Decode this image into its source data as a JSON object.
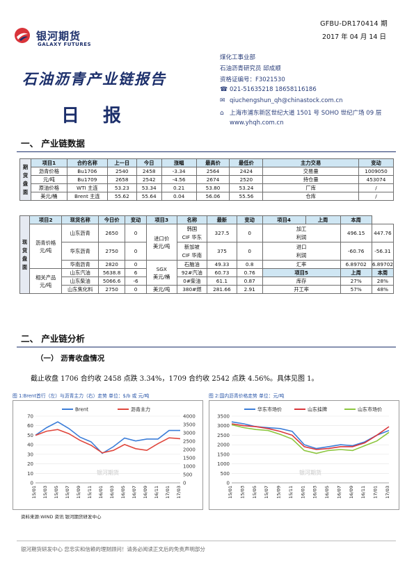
{
  "header": {
    "logo_cn": "银河期货",
    "logo_en": "GALAXY FUTURES",
    "doc_id": "GFBU-DR170414 期",
    "date": "2017 年 04 月 14 日",
    "title": "石油沥青产业链报告",
    "subtitle": "日报"
  },
  "contact": {
    "dept": "煤化工事业部",
    "researcher": "石油沥青研究员  邱成顺",
    "license": "资格证编号：F3021530",
    "phone": "021-51635218    18658116186",
    "email": "qiuchengshun_qh@chinastock.com.cn",
    "address": "上海市浦东新区世纪大道 1501 号 SOHO 世纪广场 09 层",
    "website": "www.yhqh.com.cn",
    "phone_icon": "telephone-icon",
    "email_icon": "envelope-icon",
    "address_icon": "building-icon"
  },
  "section1": {
    "title": "一、  产业链数据"
  },
  "futures_table": {
    "side_label": "期货盘面",
    "headers": [
      "项目1",
      "合约名称",
      "上一日",
      "今日",
      "涨幅",
      "最高价",
      "最低价",
      "主力交易",
      "变动"
    ],
    "rows": [
      [
        "沥青价格",
        "Bu1706",
        "2540",
        "2458",
        "-3.34",
        "2564",
        "2424",
        "交易量",
        "1009050",
        "427568"
      ],
      [
        "元/吨",
        "Bu1709",
        "2658",
        "2542",
        "-4.56",
        "2674",
        "2520",
        "持仓量",
        "453074",
        "43122"
      ],
      [
        "原油价格",
        "WTI 主连",
        "53.23",
        "53.34",
        "0.21",
        "53.80",
        "53.24",
        "厂库",
        "/",
        "/"
      ],
      [
        "美元/桶",
        "Brent 主连",
        "55.62",
        "55.64",
        "0.04",
        "56.06",
        "55.56",
        "仓库",
        "/",
        "/"
      ]
    ]
  },
  "spot_table": {
    "side_label": "现货盘面",
    "headers": [
      "项目2",
      "现货名称",
      "今日价",
      "变动",
      "项目3",
      "名称",
      "最新",
      "变动",
      "项目4",
      "上周",
      "本周"
    ],
    "group1_label": "沥青价格元/吨",
    "group2_label": "相关产品元/吨",
    "import_label": "进口价美元/吨",
    "sgx_label": "SGX美元/桶",
    "usd_label": "美元/吨",
    "rows": [
      {
        "name": "山东沥青",
        "price": "2650",
        "chg": "0",
        "n3": "韩国CIF 华东",
        "latest": "327.5",
        "chg3": "0",
        "n4": "加工利润",
        "last": "496.15",
        "this": "447.76"
      },
      {
        "name": "华东沥青",
        "price": "2750",
        "chg": "0",
        "n3": "新加坡CIF 华南",
        "latest": "375",
        "chg3": "0",
        "n4": "进口利润",
        "last": "-60.76",
        "this": "-56.31"
      },
      {
        "name": "华南沥青",
        "price": "2820",
        "chg": "0",
        "n3": "石脑油",
        "latest": "49.33",
        "chg3": "0.8",
        "n4": "汇率",
        "last": "6.89702",
        "this": "6.89702"
      },
      {
        "name": "山东汽油",
        "price": "5638.8",
        "chg": "6",
        "n3": "92#汽油",
        "latest": "60.73",
        "chg3": "0.76",
        "n4": "项目5",
        "last": "上周",
        "this": "本周"
      },
      {
        "name": "山东柴油",
        "price": "5066.6",
        "chg": "-6",
        "n3": "0#柴油",
        "latest": "61.1",
        "chg3": "0.87",
        "n4": "库存",
        "last": "27%",
        "this": "28%"
      },
      {
        "name": "山东焦化料",
        "price": "2750",
        "chg": "0",
        "n3": "380#燃",
        "latest": "281.66",
        "chg3": "2.91",
        "n4": "开工率",
        "last": "57%",
        "this": "48%"
      }
    ]
  },
  "section2": {
    "title": "二、  产业链分析",
    "sub1": "（一）  沥青收盘情况"
  },
  "paragraph": "截止收盘 1706 合约收 2458 点跌 3.34%，1709 合约收 2542 点跌 4.56%。具体见图 1。",
  "chart1_caption": "图 1:Brent首行（左）与沥青主力（右）走势   单位：$/b 或 元/吨",
  "chart2_caption": "图 2:国内沥青价格走势   单位：元/吨",
  "watermark": "银河期货",
  "chart_data": [
    {
      "type": "line",
      "x": [
        "15/01",
        "15/03",
        "15/05",
        "15/07",
        "15/09",
        "15/11",
        "16/01",
        "16/03",
        "16/05",
        "16/07",
        "16/09",
        "16/11",
        "17/01",
        "17/03"
      ],
      "series": [
        {
          "name": "Brent",
          "axis": "left",
          "color": "#3b7dd8",
          "values": [
            50,
            58,
            64,
            57,
            48,
            43,
            31,
            38,
            47,
            44,
            46,
            46,
            55,
            55
          ]
        },
        {
          "name": "沥青主力",
          "axis": "right",
          "color": "#e0463c",
          "values": [
            2850,
            3100,
            3200,
            2950,
            2550,
            2250,
            1800,
            1950,
            2300,
            2050,
            1950,
            2350,
            2700,
            2650
          ]
        }
      ],
      "yleft_ticks": [
        "0",
        "10",
        "20",
        "30",
        "40",
        "50",
        "60",
        "70"
      ],
      "yright_ticks": [
        "0",
        "500",
        "1000",
        "1500",
        "2000",
        "2500",
        "3000",
        "3500",
        "4000"
      ],
      "ylim_left": [
        0,
        70
      ],
      "ylim_right": [
        0,
        4000
      ],
      "legend": "top"
    },
    {
      "type": "line",
      "x": [
        "15/01",
        "15/03",
        "15/05",
        "15/07",
        "15/09",
        "15/11",
        "16/01",
        "16/03",
        "16/05",
        "16/07",
        "16/09",
        "16/11",
        "17/01",
        "17/03"
      ],
      "series": [
        {
          "name": "华东市场价",
          "color": "#3b7dd8",
          "values": [
            3200,
            3100,
            2950,
            2900,
            2850,
            2700,
            2000,
            1800,
            1900,
            2000,
            1950,
            2150,
            2500,
            2750
          ]
        },
        {
          "name": "山东挂牌",
          "color": "#d9343a",
          "values": [
            3100,
            3000,
            2950,
            2850,
            2700,
            2500,
            1900,
            1750,
            1800,
            1900,
            1900,
            2100,
            2500,
            2950
          ]
        },
        {
          "name": "山东市场价",
          "color": "#8cc63e",
          "values": [
            3050,
            2900,
            2800,
            2750,
            2550,
            2300,
            1700,
            1550,
            1700,
            1750,
            1700,
            1950,
            2200,
            2650
          ]
        }
      ],
      "y_ticks": [
        "0",
        "500",
        "1000",
        "1500",
        "2000",
        "2500",
        "3000",
        "3500"
      ],
      "ylim": [
        0,
        3500
      ],
      "legend": "top"
    }
  ],
  "footnote": "资料来源:WIND 资讯   银河期货研发中心",
  "footer": "银河期货研发中心  您忠实和信赖的理财顾问！请务必阅读正文后的免责声明部分"
}
